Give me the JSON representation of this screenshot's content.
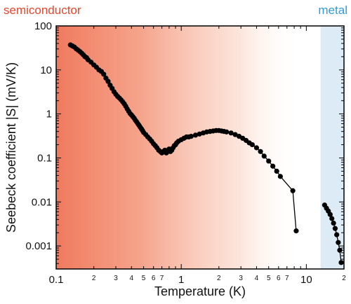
{
  "chart_data": {
    "type": "scatter",
    "title": "",
    "xlabel": "Temperature (K)",
    "ylabel": "Seebeck coefficient |S| (mV/K)",
    "xscale": "log",
    "yscale": "log",
    "xlim": [
      0.1,
      20
    ],
    "ylim": [
      0.0003,
      100
    ],
    "grid": false,
    "x_major_ticks": [
      {
        "value": 0.1,
        "label": "0.1"
      },
      {
        "value": 1,
        "label": "1"
      },
      {
        "value": 10,
        "label": "10"
      }
    ],
    "x_minor_ticks": [
      {
        "value": 0.2,
        "label": "2"
      },
      {
        "value": 0.3,
        "label": "3"
      },
      {
        "value": 0.4,
        "label": "4"
      },
      {
        "value": 0.5,
        "label": "5"
      },
      {
        "value": 0.6,
        "label": "6"
      },
      {
        "value": 0.7,
        "label": "7"
      },
      {
        "value": 2,
        "label": "2"
      },
      {
        "value": 3,
        "label": "3"
      },
      {
        "value": 4,
        "label": "4"
      },
      {
        "value": 5,
        "label": "5"
      },
      {
        "value": 6,
        "label": "6"
      },
      {
        "value": 7,
        "label": "7"
      },
      {
        "value": 20,
        "label": "2"
      }
    ],
    "y_ticks": [
      {
        "value": 100,
        "label": "100"
      },
      {
        "value": 10,
        "label": "10"
      },
      {
        "value": 1,
        "label": "1"
      },
      {
        "value": 0.1,
        "label": "0.1"
      },
      {
        "value": 0.01,
        "label": "0.01"
      },
      {
        "value": 0.001,
        "label": "0.001"
      }
    ],
    "regions": [
      {
        "label": "semiconductor",
        "color": "#e8442a",
        "x_from": 0.1,
        "x_to": 9.0
      },
      {
        "label": "metal",
        "color": "#2f9bd6",
        "x_from": 13.0,
        "x_to": 20
      }
    ],
    "series": [
      {
        "color": "#000000",
        "x": [
          0.13,
          0.135,
          0.14,
          0.145,
          0.15,
          0.155,
          0.16,
          0.165,
          0.17,
          0.175,
          0.18,
          0.19,
          0.2,
          0.21,
          0.22,
          0.23,
          0.24,
          0.25,
          0.26,
          0.27,
          0.28,
          0.29,
          0.3,
          0.31,
          0.32,
          0.33,
          0.34,
          0.35,
          0.36,
          0.37,
          0.38,
          0.39,
          0.4,
          0.41,
          0.42,
          0.43,
          0.44,
          0.45,
          0.46,
          0.47,
          0.48,
          0.49,
          0.5,
          0.52,
          0.54,
          0.56,
          0.58,
          0.6,
          0.62,
          0.64,
          0.66,
          0.68,
          0.7,
          0.72,
          0.74,
          0.76,
          0.78,
          0.8,
          0.82,
          0.84,
          0.86,
          0.88,
          0.9,
          0.92,
          0.95,
          1.0,
          1.05,
          1.1,
          1.15,
          1.2,
          1.3,
          1.4,
          1.5,
          1.6,
          1.7,
          1.8,
          1.9,
          2.0,
          2.1,
          2.2,
          2.3,
          2.5,
          2.7,
          2.9,
          3.1,
          3.3,
          3.5,
          3.7,
          4.0,
          4.3,
          4.6,
          5.0,
          5.4,
          5.8,
          6.2,
          7.8,
          8.3
        ],
        "y": [
          37,
          35,
          33,
          30,
          28,
          26,
          24,
          22,
          20,
          19,
          17,
          15,
          13,
          11.5,
          10,
          9.2,
          8,
          6.5,
          5.5,
          4.5,
          3.8,
          3.2,
          2.8,
          2.5,
          2.3,
          2.1,
          1.9,
          1.7,
          1.5,
          1.3,
          1.15,
          1.02,
          0.95,
          0.87,
          0.8,
          0.72,
          0.66,
          0.6,
          0.55,
          0.5,
          0.46,
          0.42,
          0.38,
          0.34,
          0.3,
          0.27,
          0.24,
          0.21,
          0.19,
          0.17,
          0.15,
          0.14,
          0.13,
          0.14,
          0.15,
          0.13,
          0.14,
          0.16,
          0.14,
          0.15,
          0.17,
          0.19,
          0.2,
          0.22,
          0.24,
          0.26,
          0.28,
          0.3,
          0.3,
          0.31,
          0.33,
          0.35,
          0.37,
          0.39,
          0.4,
          0.41,
          0.42,
          0.42,
          0.41,
          0.4,
          0.39,
          0.37,
          0.34,
          0.31,
          0.28,
          0.25,
          0.22,
          0.2,
          0.17,
          0.14,
          0.11,
          0.085,
          0.065,
          0.05,
          0.038,
          0.018,
          0.0022
        ]
      },
      {
        "color": "#000000",
        "x": [
          14.0,
          14.5,
          15.0,
          15.5,
          16.0,
          16.5,
          17.0,
          17.5,
          18.0,
          18.5,
          19.0
        ],
        "y": [
          0.0085,
          0.0072,
          0.0062,
          0.0052,
          0.0042,
          0.0033,
          0.0025,
          0.0018,
          0.0012,
          0.0008,
          0.00042
        ]
      }
    ]
  }
}
